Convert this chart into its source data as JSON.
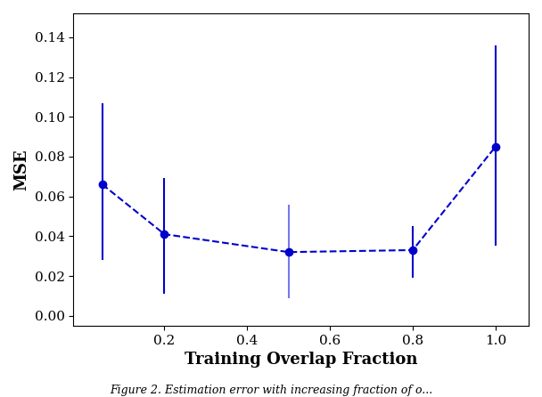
{
  "x": [
    0.05,
    0.2,
    0.5,
    0.8,
    1.0
  ],
  "y": [
    0.066,
    0.041,
    0.032,
    0.033,
    0.085
  ],
  "err_low": [
    0.038,
    0.03,
    0.023,
    0.014,
    0.05
  ],
  "err_high": [
    0.041,
    0.028,
    0.024,
    0.012,
    0.051
  ],
  "line_color": "#0000CC",
  "marker_color": "#0000CC",
  "errbar_colors": [
    "#0000CC",
    "#0000CC",
    "#7777EE",
    "#0000CC",
    "#0000CC"
  ],
  "xlabel": "Training Overlap Fraction",
  "ylabel": "MSE",
  "xlim": [
    -0.02,
    1.08
  ],
  "ylim": [
    -0.005,
    0.152
  ],
  "xticks": [
    0.2,
    0.4,
    0.6,
    0.8,
    1.0
  ],
  "yticks": [
    0.0,
    0.02,
    0.04,
    0.06,
    0.08,
    0.1,
    0.12,
    0.14
  ],
  "xlabel_fontsize": 13,
  "ylabel_fontsize": 13,
  "tick_fontsize": 11
}
